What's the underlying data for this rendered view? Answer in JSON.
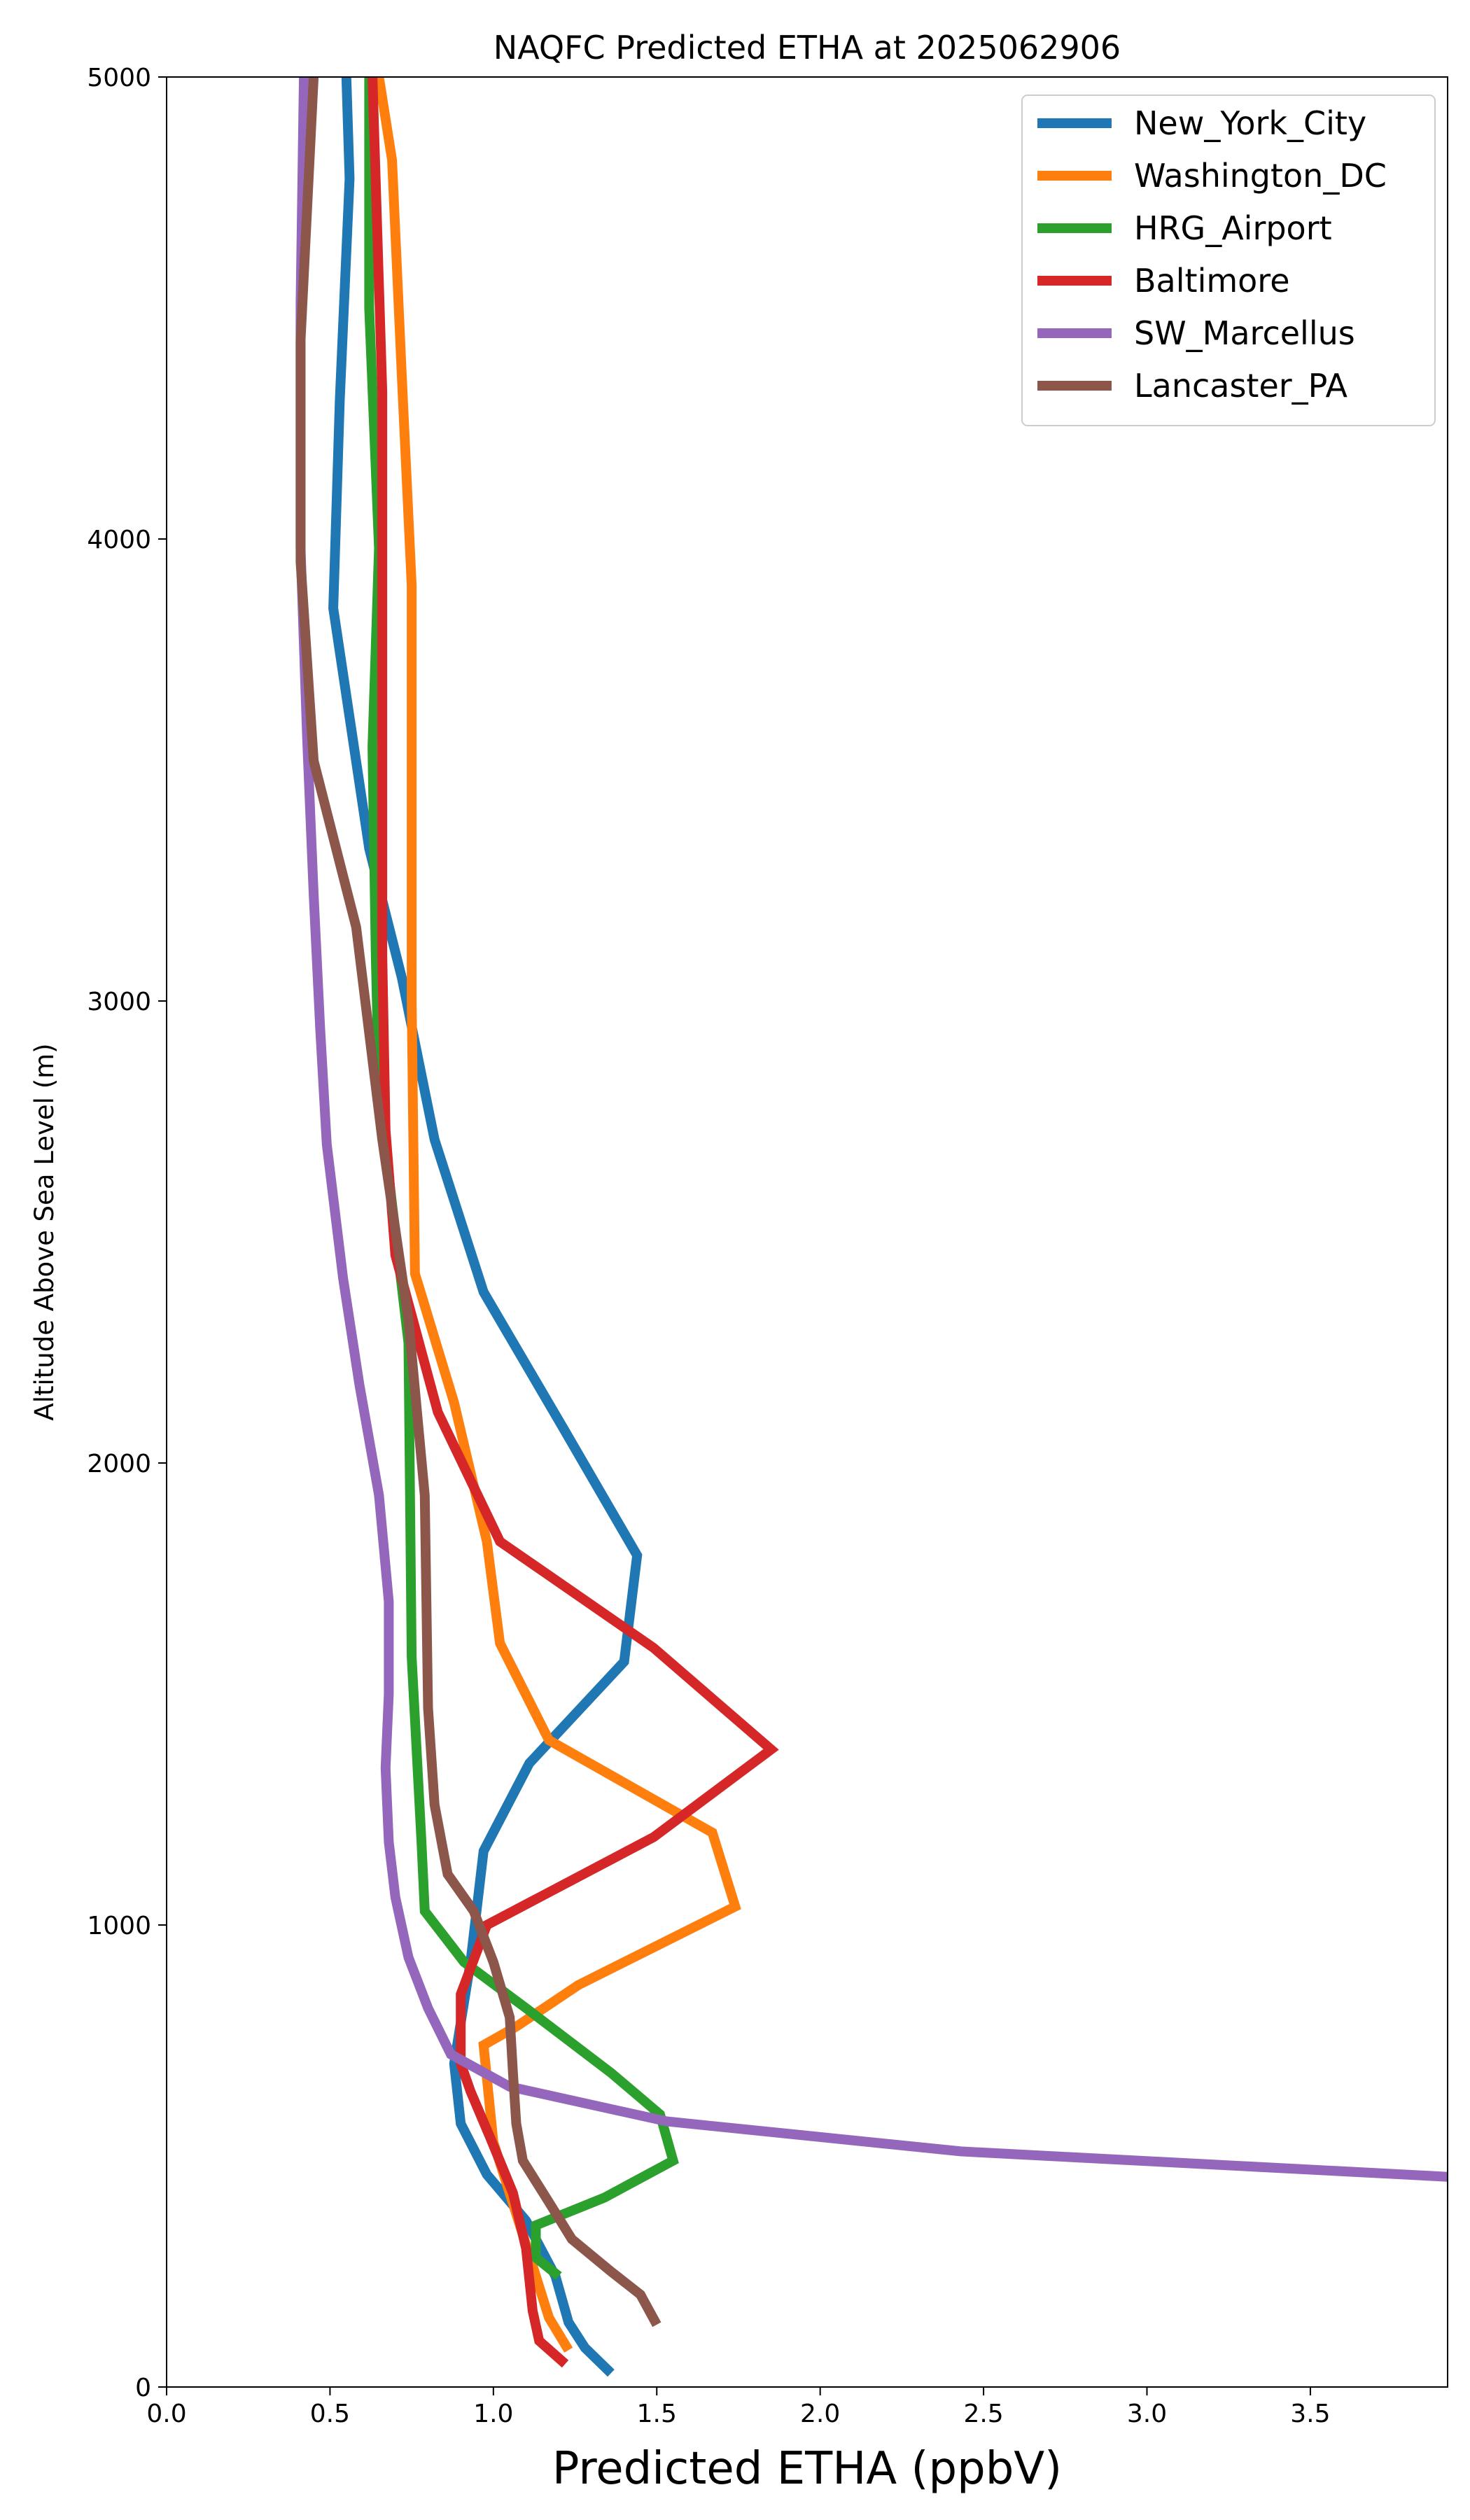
{
  "chart_data": {
    "type": "line",
    "title": "NAQFC Predicted ETHA at 2025062906",
    "xlabel": "Predicted ETHA (ppbV)",
    "ylabel": "Altitude Above Sea Level (m)",
    "xlim": [
      0,
      3.92
    ],
    "ylim": [
      0,
      5000
    ],
    "xticks": [
      0.0,
      0.5,
      1.0,
      1.5,
      2.0,
      2.5,
      3.0,
      3.5
    ],
    "xtick_labels": [
      "0.0",
      "0.5",
      "1.0",
      "1.5",
      "2.0",
      "2.5",
      "3.0",
      "3.5"
    ],
    "yticks": [
      0,
      1000,
      2000,
      3000,
      4000,
      5000
    ],
    "ytick_labels": [
      "0",
      "1000",
      "2000",
      "3000",
      "4000",
      "5000"
    ],
    "grid": false,
    "legend_position": "top-right",
    "series": [
      {
        "name": "New_York_City",
        "color": "#1f77b4",
        "points": [
          [
            1.36,
            30
          ],
          [
            1.28,
            85
          ],
          [
            1.23,
            140
          ],
          [
            1.19,
            240
          ],
          [
            1.1,
            360
          ],
          [
            0.98,
            460
          ],
          [
            0.9,
            570
          ],
          [
            0.88,
            700
          ],
          [
            0.93,
            920
          ],
          [
            0.97,
            1160
          ],
          [
            1.11,
            1350
          ],
          [
            1.4,
            1570
          ],
          [
            1.44,
            1800
          ],
          [
            1.21,
            2080
          ],
          [
            0.97,
            2370
          ],
          [
            0.82,
            2700
          ],
          [
            0.72,
            3050
          ],
          [
            0.62,
            3330
          ],
          [
            0.51,
            3850
          ],
          [
            0.53,
            4300
          ],
          [
            0.56,
            4780
          ],
          [
            0.55,
            5000
          ]
        ]
      },
      {
        "name": "Washington_DC",
        "color": "#ff7f0e",
        "points": [
          [
            1.23,
            80
          ],
          [
            1.17,
            150
          ],
          [
            1.09,
            330
          ],
          [
            1.0,
            530
          ],
          [
            0.97,
            740
          ],
          [
            1.07,
            780
          ],
          [
            1.26,
            870
          ],
          [
            1.74,
            1040
          ],
          [
            1.67,
            1200
          ],
          [
            1.17,
            1400
          ],
          [
            1.02,
            1610
          ],
          [
            0.98,
            1830
          ],
          [
            0.88,
            2130
          ],
          [
            0.76,
            2410
          ],
          [
            0.75,
            3000
          ],
          [
            0.75,
            3900
          ],
          [
            0.72,
            4350
          ],
          [
            0.69,
            4820
          ],
          [
            0.65,
            5000
          ]
        ]
      },
      {
        "name": "HRG_Airport",
        "color": "#2ca02c",
        "points": [
          [
            1.2,
            240
          ],
          [
            1.13,
            280
          ],
          [
            1.13,
            350
          ],
          [
            1.34,
            410
          ],
          [
            1.55,
            490
          ],
          [
            1.51,
            590
          ],
          [
            1.36,
            680
          ],
          [
            1.1,
            820
          ],
          [
            0.91,
            920
          ],
          [
            0.79,
            1030
          ],
          [
            0.78,
            1180
          ],
          [
            0.75,
            1580
          ],
          [
            0.74,
            2260
          ],
          [
            0.65,
            2800
          ],
          [
            0.64,
            3100
          ],
          [
            0.63,
            3550
          ],
          [
            0.65,
            3980
          ],
          [
            0.62,
            4500
          ],
          [
            0.62,
            5000
          ]
        ]
      },
      {
        "name": "Baltimore",
        "color": "#d62728",
        "points": [
          [
            1.22,
            50
          ],
          [
            1.14,
            100
          ],
          [
            1.12,
            165
          ],
          [
            1.1,
            300
          ],
          [
            1.06,
            420
          ],
          [
            0.99,
            540
          ],
          [
            0.93,
            640
          ],
          [
            0.9,
            700
          ],
          [
            0.9,
            850
          ],
          [
            0.98,
            1000
          ],
          [
            1.49,
            1190
          ],
          [
            1.85,
            1380
          ],
          [
            1.49,
            1600
          ],
          [
            1.02,
            1830
          ],
          [
            0.83,
            2110
          ],
          [
            0.7,
            2450
          ],
          [
            0.67,
            2720
          ],
          [
            0.66,
            3100
          ],
          [
            0.66,
            4320
          ],
          [
            0.63,
            5000
          ]
        ]
      },
      {
        "name": "SW_Marcellus",
        "color": "#9467bd",
        "points": [
          [
            3.92,
            455
          ],
          [
            2.43,
            510
          ],
          [
            1.53,
            575
          ],
          [
            1.05,
            650
          ],
          [
            0.87,
            720
          ],
          [
            0.8,
            820
          ],
          [
            0.74,
            930
          ],
          [
            0.7,
            1060
          ],
          [
            0.68,
            1180
          ],
          [
            0.67,
            1340
          ],
          [
            0.68,
            1500
          ],
          [
            0.68,
            1700
          ],
          [
            0.65,
            1930
          ],
          [
            0.59,
            2170
          ],
          [
            0.54,
            2400
          ],
          [
            0.49,
            2690
          ],
          [
            0.47,
            2940
          ],
          [
            0.45,
            3230
          ],
          [
            0.43,
            3570
          ],
          [
            0.41,
            3980
          ],
          [
            0.41,
            4510
          ],
          [
            0.42,
            5000
          ]
        ]
      },
      {
        "name": "Lancaster_PA",
        "color": "#8c564b",
        "points": [
          [
            1.5,
            135
          ],
          [
            1.45,
            200
          ],
          [
            1.36,
            250
          ],
          [
            1.24,
            320
          ],
          [
            1.17,
            400
          ],
          [
            1.09,
            490
          ],
          [
            1.07,
            570
          ],
          [
            1.06,
            680
          ],
          [
            1.05,
            800
          ],
          [
            1.0,
            920
          ],
          [
            0.94,
            1030
          ],
          [
            0.86,
            1110
          ],
          [
            0.82,
            1260
          ],
          [
            0.8,
            1470
          ],
          [
            0.79,
            1930
          ],
          [
            0.74,
            2310
          ],
          [
            0.66,
            2700
          ],
          [
            0.58,
            3160
          ],
          [
            0.45,
            3520
          ],
          [
            0.41,
            3950
          ],
          [
            0.41,
            4430
          ],
          [
            0.45,
            5000
          ]
        ]
      }
    ]
  }
}
